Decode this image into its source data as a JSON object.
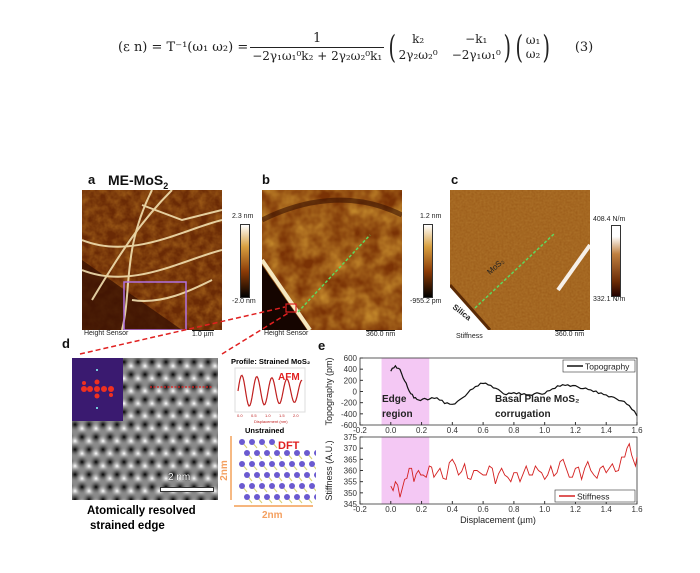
{
  "equation": {
    "lhs": "(ε n) = T⁻¹(ω₁ ω₂) =",
    "numerator": "1",
    "denominator": "−2γ₁ω₁⁰k₂ + 2γ₂ω₂⁰k₁",
    "matrix": [
      "k₂",
      "−k₁",
      "2γ₂ω₂⁰",
      "−2γ₁ω₁⁰"
    ],
    "vector": [
      "ω₁",
      "ω₂"
    ],
    "number": "(3)"
  },
  "panel_a": {
    "label": "a",
    "title": "ME-MoS",
    "title_sub": "2",
    "channel": "Height Sensor",
    "scale": "1.0 µm",
    "cb_max": "2.3 nm",
    "cb_min": "-2.0 nm"
  },
  "panel_b": {
    "label": "b",
    "channel": "Height Sensor",
    "scale": "360.0 nm",
    "cb_max": "1.2 nm",
    "cb_min": "-955.2 pm"
  },
  "panel_c": {
    "label": "c",
    "channel": "Stiffness",
    "scale": "360.0 nm",
    "cb_max": "408.4 N/m",
    "cb_min": "332.1 N/m",
    "mos2": "MoS₂",
    "silica": "Silica"
  },
  "panel_d": {
    "label": "d",
    "scale": "2 nm",
    "caption_1": "Atomically resolved",
    "caption_2": "strained edge",
    "profile_title": "Profile: Strained MoS₂",
    "afm": "AFM",
    "afm_xlabel": "Displacement (nm)",
    "afm_ticks": [
      "0.0",
      "0.5",
      "1.0",
      "1.5",
      "2.0"
    ],
    "unstrained": "Unstrained",
    "dft": "DFT",
    "dim_v": "2nm",
    "dim_h": "2nm"
  },
  "chart_data": [
    {
      "type": "line",
      "label": "e",
      "xlabel": "",
      "ylabel": "Topography (pm)",
      "xlim": [
        -0.2,
        1.6
      ],
      "ylim": [
        -600,
        600
      ],
      "xticks": [
        "-0.2",
        "0.0",
        "0.2",
        "0.4",
        "0.6",
        "0.8",
        "1.0",
        "1.2",
        "1.4",
        "1.6"
      ],
      "yticks": [
        "600",
        "400",
        "200",
        "0",
        "-200",
        "-400",
        "-600"
      ],
      "shaded_region": [
        -0.06,
        0.25
      ],
      "annotations": [
        "Edge",
        "region",
        "Basal Plane MoS₂",
        "corrugation"
      ],
      "series": [
        {
          "name": "Topography",
          "color": "#111111",
          "x": [
            0,
            0.03,
            0.06,
            0.09,
            0.12,
            0.15,
            0.18,
            0.22,
            0.25,
            0.3,
            0.35,
            0.4,
            0.45,
            0.5,
            0.55,
            0.6,
            0.65,
            0.7,
            0.75,
            0.8,
            0.85,
            0.9,
            0.95,
            1.0,
            1.05,
            1.1,
            1.15,
            1.2,
            1.25,
            1.3,
            1.35,
            1.4,
            1.45,
            1.5,
            1.55,
            1.6
          ],
          "y": [
            380,
            460,
            380,
            200,
            0,
            -100,
            -150,
            -140,
            -130,
            -120,
            -200,
            -230,
            -160,
            -20,
            80,
            160,
            110,
            20,
            -50,
            -30,
            -40,
            -60,
            -40,
            -30,
            40,
            110,
            120,
            90,
            60,
            20,
            -20,
            -60,
            -120,
            -160,
            -260,
            -420
          ]
        }
      ]
    },
    {
      "type": "line",
      "xlabel": "Displacement (µm)",
      "ylabel": "Stiffness (A.U.)",
      "xlim": [
        -0.2,
        1.6
      ],
      "ylim": [
        345,
        375
      ],
      "xticks": [
        "-0.2",
        "0.0",
        "0.2",
        "0.4",
        "0.6",
        "0.8",
        "1.0",
        "1.2",
        "1.4",
        "1.6"
      ],
      "yticks": [
        "375",
        "370",
        "365",
        "360",
        "355",
        "350",
        "345"
      ],
      "shaded_region": [
        -0.06,
        0.25
      ],
      "series": [
        {
          "name": "Stiffness",
          "color": "#d42020",
          "x": [
            0,
            0.03,
            0.06,
            0.09,
            0.12,
            0.15,
            0.18,
            0.21,
            0.25,
            0.28,
            0.32,
            0.36,
            0.4,
            0.44,
            0.48,
            0.52,
            0.56,
            0.6,
            0.64,
            0.68,
            0.72,
            0.76,
            0.8,
            0.84,
            0.88,
            0.92,
            0.96,
            1.0,
            1.04,
            1.08,
            1.12,
            1.16,
            1.2,
            1.24,
            1.28,
            1.32,
            1.36,
            1.4,
            1.44,
            1.48,
            1.52,
            1.55,
            1.58,
            1.6
          ],
          "y": [
            353,
            355,
            348,
            356,
            361,
            355,
            360,
            358,
            362,
            357,
            361,
            356,
            365,
            358,
            363,
            356,
            360,
            358,
            362,
            354,
            361,
            357,
            359,
            355,
            362,
            358,
            360,
            356,
            362,
            359,
            365,
            357,
            361,
            356,
            364,
            358,
            361,
            359,
            363,
            360,
            366,
            372,
            364,
            366
          ]
        }
      ]
    }
  ]
}
